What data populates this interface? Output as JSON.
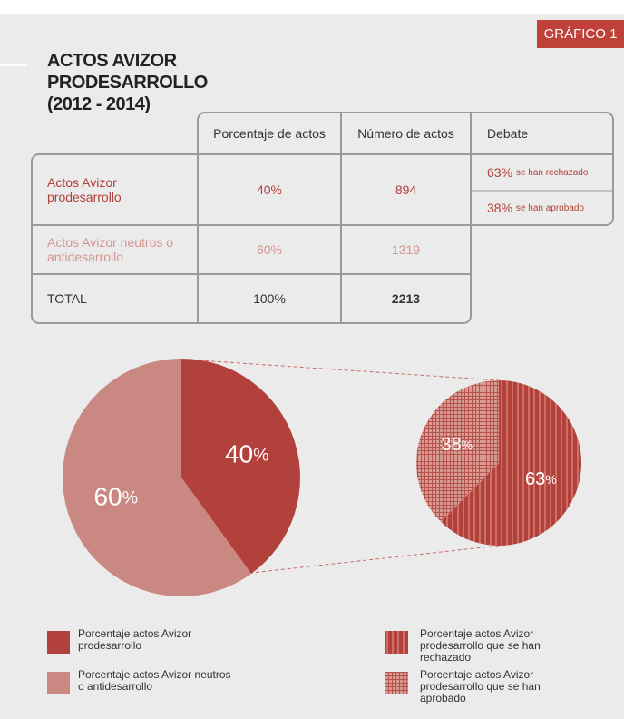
{
  "badge": "GRÁFICO 1",
  "title_lines": [
    "ACTOS AVIZOR",
    "PRODESARROLLO",
    "(2012 - 2014)"
  ],
  "table": {
    "header": [
      "Porcentaje de actos",
      "Número de actos",
      "Debate"
    ],
    "rows": [
      [
        "Actos Avizor prodesarrollo",
        "40%",
        "894"
      ],
      [
        "Actos Avizor neutros o antidesarrollo",
        "60%",
        "1319"
      ],
      [
        "TOTAL",
        "100%",
        "2213"
      ]
    ],
    "debate": [
      {
        "value": "63%",
        "text": "se han rechazado"
      },
      {
        "value": "38%",
        "text": "se han aprobado"
      }
    ]
  },
  "chart_data": [
    {
      "type": "pie",
      "categories": [
        "Porcentaje actos Avizor prodesarrollo",
        "Porcentaje actos Avizor neutros o antidesarrollo"
      ],
      "values": [
        40,
        60
      ],
      "value_labels": [
        "40%",
        "60%"
      ],
      "colors": [
        "#b2403b",
        "#c98881"
      ]
    },
    {
      "type": "pie",
      "categories": [
        "Porcentaje actos Avizor prodesarrollo que se han rechazado",
        "Porcentaje actos Avizor prodesarrollo que se han aprobado"
      ],
      "values": [
        63,
        38
      ],
      "value_labels": [
        "63%",
        "38%"
      ],
      "colors": [
        "#b2403b",
        "#cf8e87"
      ],
      "patterns": [
        "stripes",
        "checks"
      ]
    }
  ]
}
